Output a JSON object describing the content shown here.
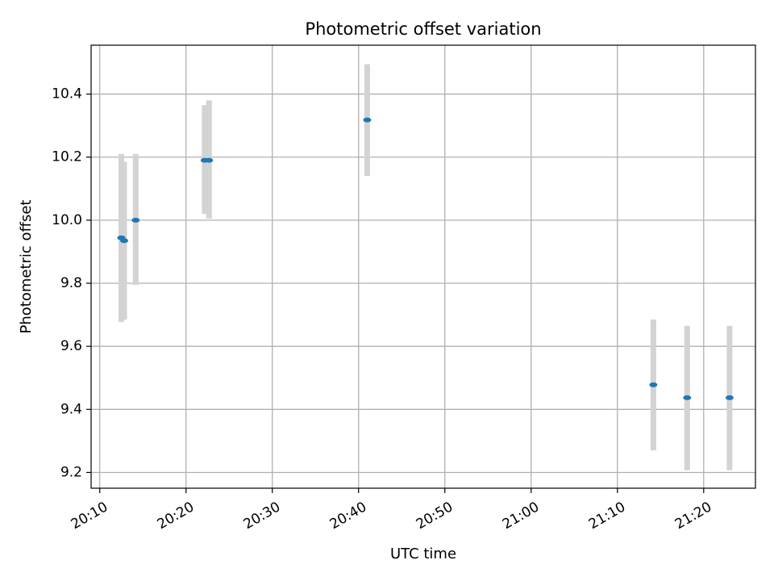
{
  "chart_data": {
    "type": "scatter",
    "title": "Photometric offset variation",
    "xlabel": "UTC time",
    "ylabel": "Photometric offset",
    "xlim": [
      "20:09:00",
      "21:26:00"
    ],
    "ylim": [
      9.15,
      10.555
    ],
    "x_ticks": [
      "20:10",
      "20:20",
      "20:30",
      "20:40",
      "20:50",
      "21:00",
      "21:10",
      "21:20"
    ],
    "y_ticks": [
      "9.2",
      "9.4",
      "9.6",
      "9.8",
      "10.0",
      "10.2",
      "10.4"
    ],
    "grid": true,
    "colors": {
      "point": "#1f77b4",
      "errorbar": "#d3d3d3",
      "grid": "#b0b0b0"
    },
    "points": [
      {
        "time": "20:12:30",
        "offset": 9.944,
        "err_low": 9.677,
        "err_high": 10.21
      },
      {
        "time": "20:12:50",
        "offset": 9.935,
        "err_low": 9.685,
        "err_high": 10.185
      },
      {
        "time": "20:14:10",
        "offset": 10.0,
        "err_low": 9.795,
        "err_high": 10.21
      },
      {
        "time": "20:22:10",
        "offset": 10.19,
        "err_low": 10.02,
        "err_high": 10.365
      },
      {
        "time": "20:22:40",
        "offset": 10.19,
        "err_low": 10.005,
        "err_high": 10.38
      },
      {
        "time": "20:41:00",
        "offset": 10.318,
        "err_low": 10.14,
        "err_high": 10.495
      },
      {
        "time": "21:14:10",
        "offset": 9.478,
        "err_low": 9.27,
        "err_high": 9.685
      },
      {
        "time": "21:18:05",
        "offset": 9.437,
        "err_low": 9.207,
        "err_high": 9.665
      },
      {
        "time": "21:23:00",
        "offset": 9.437,
        "err_low": 9.207,
        "err_high": 9.665
      }
    ]
  }
}
